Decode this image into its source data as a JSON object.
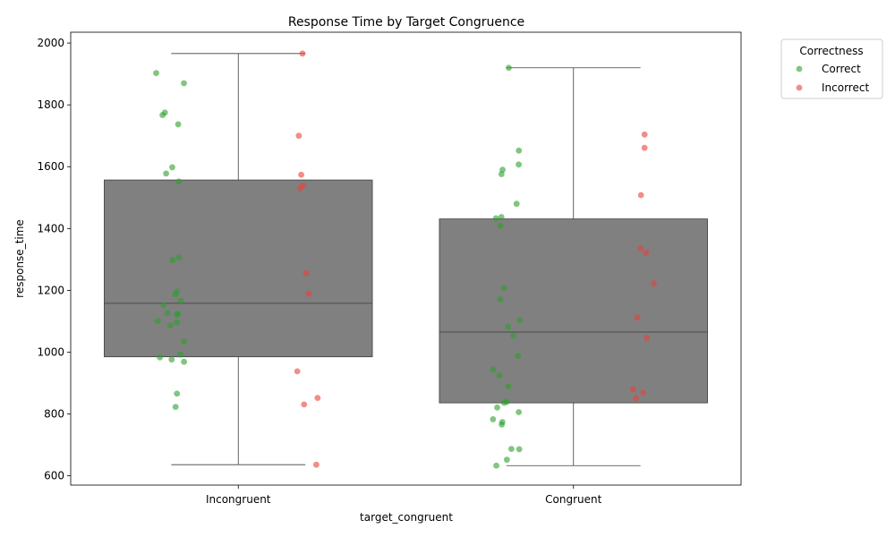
{
  "chart_data": {
    "type": "box+strip",
    "title": "Response Time by Target Congruence",
    "xlabel": "target_congruent",
    "ylabel": "response_time",
    "categories": [
      "Incongruent",
      "Congruent"
    ],
    "ylim": [
      570,
      2035
    ],
    "yticks": [
      600,
      800,
      1000,
      1200,
      1400,
      1600,
      1800,
      2000
    ],
    "box_color": "#808080",
    "boxes": [
      {
        "category": "Incongruent",
        "whisker_low": 636,
        "q1": 985,
        "median": 1158,
        "q3": 1557,
        "whisker_high": 1966
      },
      {
        "category": "Congruent",
        "whisker_low": 633,
        "q1": 836,
        "median": 1065,
        "q3": 1431,
        "whisker_high": 1920
      }
    ],
    "legend": {
      "title": "Correctness",
      "position": "outside-top-right",
      "entries": [
        {
          "label": "Correct",
          "color": "#2ca02c"
        },
        {
          "label": "Incorrect",
          "color": "#e8413c"
        }
      ]
    },
    "series": [
      {
        "name": "Correct",
        "color": "#2ca02c",
        "points": {
          "Incongruent": [
            1903,
            1870,
            1775,
            1767,
            1737,
            1598,
            1578,
            1552,
            1306,
            1298,
            1196,
            1188,
            1166,
            1152,
            1126,
            1124,
            1121,
            1101,
            1097,
            1086,
            1034,
            992,
            983,
            976,
            969,
            866,
            823
          ],
          "Congruent": [
            1920,
            1652,
            1607,
            1590,
            1576,
            1480,
            1437,
            1433,
            1409,
            1208,
            1171,
            1103,
            1082,
            1053,
            988,
            944,
            925,
            889,
            839,
            836,
            821,
            806,
            783,
            774,
            766,
            687,
            686,
            652,
            633
          ]
        }
      },
      {
        "name": "Incorrect",
        "color": "#e8413c",
        "points": {
          "Incongruent": [
            1966,
            1700,
            1574,
            1540,
            1530,
            1256,
            1189,
            938,
            852,
            831,
            636
          ],
          "Congruent": [
            1704,
            1661,
            1508,
            1335,
            1321,
            1222,
            1112,
            1046,
            880,
            869,
            851
          ]
        }
      }
    ]
  }
}
